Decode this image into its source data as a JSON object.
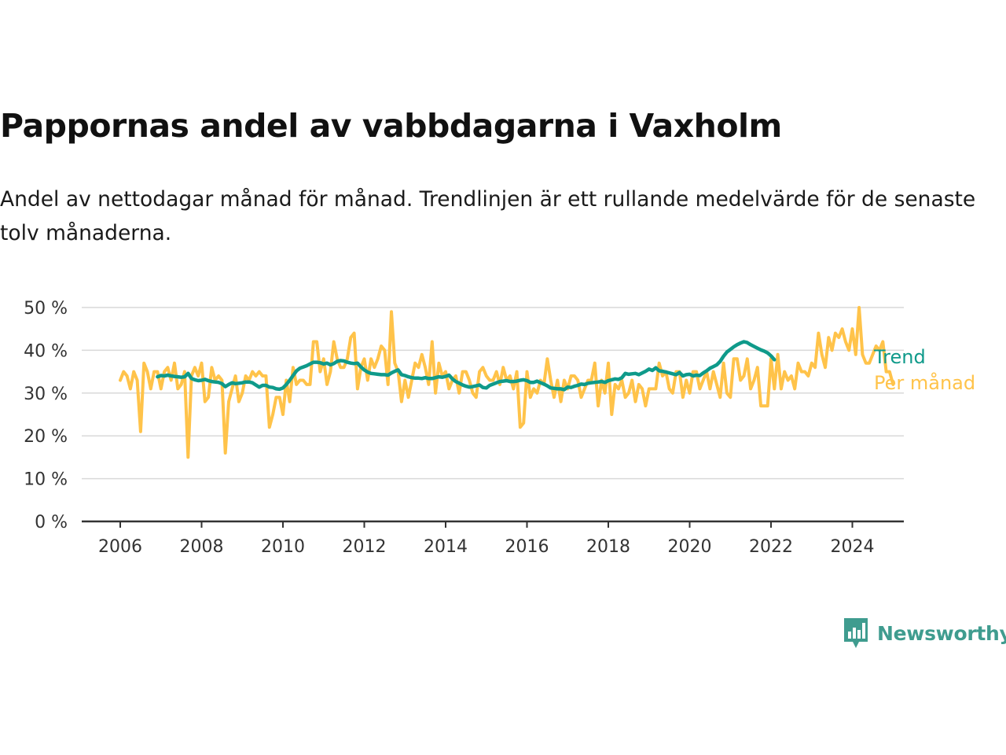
{
  "title": "Pappornas andel av vabbdagarna i Vaxholm",
  "subtitle": "Andel av nettodagar månad för månad. Trendlinjen är ett rullande medelvärde för de senaste tolv månaderna.",
  "logo": {
    "name": "Newsworthy",
    "icon": "newsworthy-bar-chart-icon"
  },
  "colors": {
    "trend": "#0f9a8a",
    "monthly": "#ffc34a",
    "grid": "#d9d9d9",
    "axis": "#333333"
  },
  "chart_data": {
    "type": "line",
    "xlim": [
      2006,
      2025.2
    ],
    "ylim": [
      0,
      50
    ],
    "x_ticks": [
      "2006",
      "2008",
      "2010",
      "2012",
      "2014",
      "2016",
      "2018",
      "2020",
      "2022",
      "2024"
    ],
    "y_ticks": [
      "0 %",
      "10 %",
      "20 %",
      "30 %",
      "40 %",
      "50 %"
    ],
    "grid": true,
    "legend": "end-of-line labels",
    "series": [
      {
        "name": "Per månad",
        "start": "2006-01",
        "values": [
          33,
          35,
          34,
          31,
          35,
          33,
          21,
          37,
          35,
          31,
          35,
          35,
          31,
          35,
          36,
          33,
          37,
          31,
          32,
          35,
          15,
          34,
          36,
          34,
          37,
          28,
          29,
          36,
          33,
          34,
          33,
          16,
          28,
          31,
          34,
          28,
          30,
          34,
          33,
          35,
          34,
          35,
          34,
          34,
          22,
          25,
          29,
          29,
          25,
          33,
          28,
          36,
          32,
          33,
          33,
          32,
          32,
          42,
          42,
          35,
          38,
          32,
          35,
          42,
          38,
          36,
          36,
          38,
          43,
          44,
          31,
          36,
          38,
          33,
          38,
          36,
          38,
          41,
          40,
          32,
          49,
          37,
          35,
          28,
          33,
          29,
          33,
          37,
          36,
          39,
          36,
          32,
          42,
          30,
          37,
          34,
          35,
          31,
          33,
          34,
          30,
          35,
          35,
          33,
          30,
          29,
          35,
          36,
          34,
          33,
          33,
          35,
          32,
          36,
          33,
          34,
          31,
          35,
          22,
          23,
          35,
          29,
          31,
          30,
          33,
          32,
          38,
          33,
          29,
          33,
          28,
          33,
          31,
          34,
          34,
          33,
          29,
          31,
          33,
          33,
          37,
          27,
          33,
          30,
          37,
          25,
          32,
          31,
          33,
          29,
          30,
          33,
          28,
          32,
          31,
          27,
          31,
          31,
          31,
          37,
          34,
          35,
          31,
          30,
          35,
          35,
          29,
          33,
          30,
          35,
          35,
          31,
          33,
          35,
          31,
          35,
          32,
          29,
          37,
          30,
          29,
          38,
          38,
          33,
          34,
          38,
          31,
          33,
          36,
          27,
          27,
          27,
          38,
          31,
          39,
          31,
          35,
          33,
          34,
          31,
          37,
          35,
          35,
          34,
          37,
          36,
          44,
          39,
          36,
          43,
          40,
          44,
          43,
          45,
          42,
          40,
          45,
          39,
          50,
          39,
          37,
          37,
          39,
          41,
          40,
          42,
          35,
          35,
          32
        ],
        "color": "#ffc34a"
      },
      {
        "name": "Trend",
        "start": "2006-12",
        "values": [
          33.8,
          34.1,
          34.0,
          34.2,
          34.0,
          33.9,
          33.8,
          33.7,
          33.8,
          34.6,
          33.4,
          33.1,
          32.9,
          33.0,
          33.2,
          32.9,
          32.7,
          32.6,
          32.5,
          32.2,
          31.5,
          32.0,
          32.4,
          32.2,
          32.3,
          32.4,
          32.6,
          32.6,
          32.4,
          31.9,
          31.4,
          31.8,
          31.8,
          31.4,
          31.3,
          31.0,
          30.9,
          31.2,
          32.0,
          33.0,
          34.1,
          35.2,
          35.8,
          36.1,
          36.4,
          36.8,
          37.2,
          37.2,
          37.1,
          36.8,
          37.0,
          36.6,
          36.9,
          37.4,
          37.6,
          37.5,
          37.2,
          37.0,
          36.9,
          37.0,
          36.1,
          35.4,
          34.9,
          34.6,
          34.5,
          34.4,
          34.3,
          34.3,
          34.2,
          34.7,
          35.1,
          35.4,
          34.3,
          34.1,
          33.8,
          33.6,
          33.5,
          33.5,
          33.4,
          33.6,
          33.4,
          33.4,
          33.6,
          33.8,
          33.7,
          33.9,
          34.2,
          33.3,
          32.7,
          32.3,
          31.9,
          31.6,
          31.4,
          31.5,
          31.7,
          31.9,
          31.3,
          31.2,
          31.8,
          32.1,
          32.4,
          32.7,
          32.8,
          32.9,
          32.7,
          32.7,
          32.8,
          33.0,
          33.1,
          32.9,
          32.5,
          32.5,
          32.8,
          32.4,
          32.1,
          31.7,
          31.2,
          31.1,
          31.0,
          31.0,
          30.8,
          31.4,
          31.3,
          31.6,
          31.8,
          32.1,
          32.0,
          32.3,
          32.4,
          32.5,
          32.6,
          32.7,
          32.5,
          32.9,
          33.1,
          33.3,
          33.2,
          33.6,
          34.6,
          34.4,
          34.5,
          34.6,
          34.3,
          34.7,
          35.1,
          35.6,
          35.3,
          35.9,
          35.2,
          35.1,
          34.9,
          34.7,
          34.5,
          34.3,
          34.8,
          34.0,
          34.3,
          34.4,
          34.0,
          34.2,
          34.1,
          34.7,
          35.2,
          35.8,
          36.2,
          36.6,
          37.4,
          38.6,
          39.6,
          40.2,
          40.8,
          41.3,
          41.7,
          42.0,
          41.8,
          41.3,
          40.9,
          40.5,
          40.1,
          39.8,
          39.4,
          38.7,
          37.8
        ],
        "color": "#0f9a8a"
      }
    ]
  }
}
